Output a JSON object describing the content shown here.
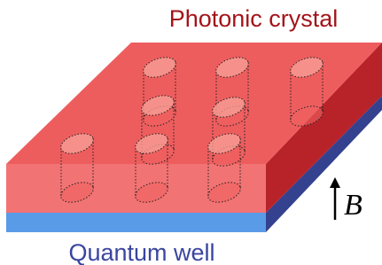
{
  "labels": {
    "top": "Photonic crystal",
    "bottom": "Quantum well",
    "field": "B"
  }
}
